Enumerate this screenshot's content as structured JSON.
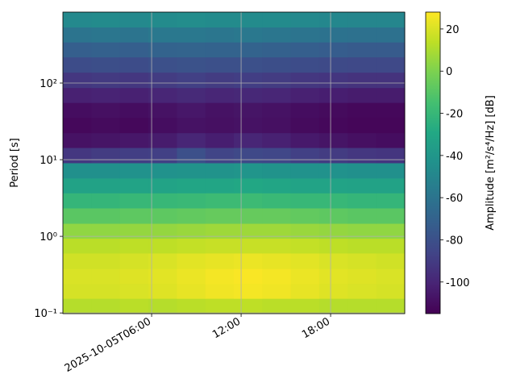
{
  "chart_data": {
    "type": "heatmap",
    "y_label": "Period [s]",
    "colorbar_label": "Amplitude [m²/s⁴/Hz] [dB]",
    "x": [
      1.0,
      2.92,
      4.83,
      6.74,
      8.65,
      10.56,
      12.46,
      14.37,
      16.28,
      18.19,
      20.1,
      22.01
    ],
    "xlim": [
      0.05,
      22.97
    ],
    "xticks": [
      {
        "value": 6,
        "label": "2025-10-05T06:00"
      },
      {
        "value": 12,
        "label": "12:00"
      },
      {
        "value": 18,
        "label": "18:00"
      }
    ],
    "y": [
      0.123,
      0.195,
      0.3,
      0.48,
      0.76,
      1.17,
      1.86,
      2.95,
      4.6,
      7.2,
      11.5,
      18,
      28,
      45,
      69,
      110,
      174,
      275,
      427,
      676
    ],
    "ylim": [
      0.098,
      843
    ],
    "y_log": true,
    "yticks": [
      {
        "value": 0.1,
        "label": "10⁻¹"
      },
      {
        "value": 1,
        "label": "10⁰"
      },
      {
        "value": 10,
        "label": "10¹"
      },
      {
        "value": 100,
        "label": "10²"
      }
    ],
    "grid": true,
    "colormap": "viridis",
    "zlim": [
      -115,
      28
    ],
    "zticks": [
      -100,
      -80,
      -60,
      -40,
      -20,
      0,
      20
    ],
    "z": [
      [
        12,
        12,
        13,
        12,
        13,
        14,
        14,
        13,
        13,
        12,
        12,
        12
      ],
      [
        19,
        19,
        20,
        21,
        23,
        25,
        26,
        25,
        23,
        21,
        20,
        19
      ],
      [
        20,
        20,
        21,
        22,
        24,
        26,
        27,
        26,
        24,
        22,
        21,
        20
      ],
      [
        18,
        18,
        19,
        20,
        22,
        23,
        24,
        23,
        22,
        20,
        19,
        18
      ],
      [
        13,
        13,
        14,
        14,
        15,
        16,
        16,
        16,
        15,
        14,
        13,
        13
      ],
      [
        4,
        4,
        5,
        5,
        6,
        7,
        7,
        7,
        6,
        5,
        4,
        4
      ],
      [
        -9,
        -9,
        -8,
        -8,
        -7,
        -6,
        -6,
        -6,
        -7,
        -8,
        -9,
        -9
      ],
      [
        -21,
        -21,
        -20,
        -20,
        -19,
        -18,
        -18,
        -19,
        -20,
        -20,
        -21,
        -21
      ],
      [
        -33,
        -33,
        -32,
        -32,
        -31,
        -31,
        -30,
        -31,
        -32,
        -32,
        -33,
        -33
      ],
      [
        -44,
        -44,
        -43,
        -43,
        -42,
        -42,
        -41,
        -42,
        -43,
        -43,
        -44,
        -44
      ],
      [
        -92,
        -90,
        -89,
        -88,
        -80,
        -86,
        -84,
        -85,
        -88,
        -90,
        -92,
        -93
      ],
      [
        -108,
        -107,
        -106,
        -104,
        -100,
        -103,
        -100,
        -102,
        -105,
        -107,
        -109,
        -110
      ],
      [
        -112,
        -111,
        -112,
        -110,
        -108,
        -109,
        -108,
        -109,
        -111,
        -112,
        -113,
        -113
      ],
      [
        -110,
        -109,
        -110,
        -108,
        -106,
        -108,
        -107,
        -108,
        -110,
        -111,
        -112,
        -112
      ],
      [
        -102,
        -101,
        -102,
        -100,
        -98,
        -100,
        -99,
        -100,
        -102,
        -103,
        -104,
        -104
      ],
      [
        -92,
        -91,
        -92,
        -90,
        -88,
        -90,
        -89,
        -90,
        -92,
        -93,
        -94,
        -94
      ],
      [
        -82,
        -81,
        -82,
        -80,
        -79,
        -80,
        -80,
        -81,
        -82,
        -83,
        -84,
        -84
      ],
      [
        -72,
        -71,
        -72,
        -70,
        -69,
        -70,
        -70,
        -71,
        -72,
        -73,
        -74,
        -74
      ],
      [
        -60,
        -59,
        -60,
        -58,
        -58,
        -59,
        -58,
        -59,
        -60,
        -61,
        -62,
        -62
      ],
      [
        -48,
        -47,
        -48,
        -47,
        -46,
        -47,
        -47,
        -47,
        -48,
        -49,
        -50,
        -50
      ]
    ]
  }
}
